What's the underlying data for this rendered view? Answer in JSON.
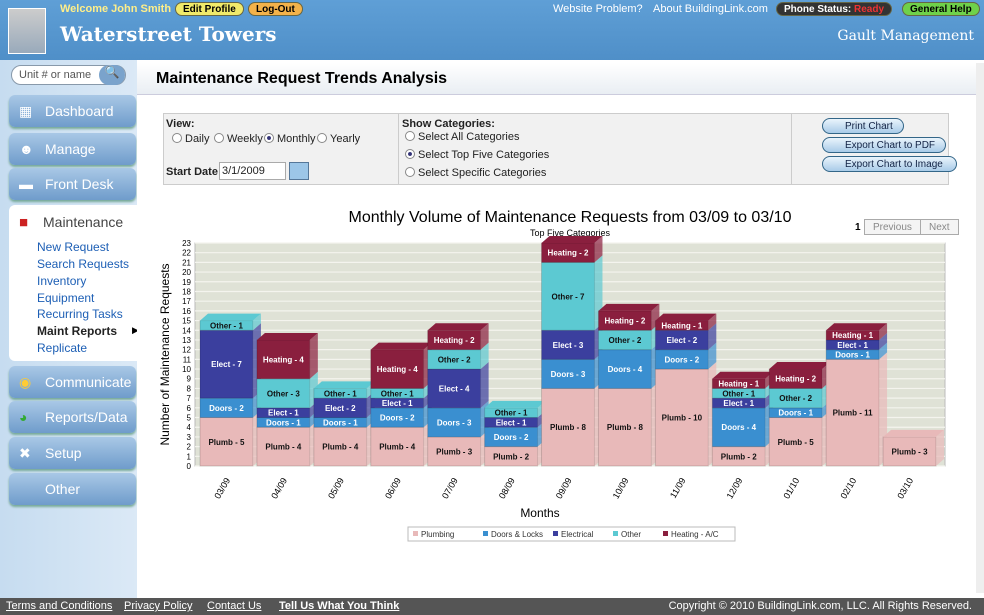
{
  "header": {
    "welcome": "Welcome John Smith",
    "edit_profile": "Edit Profile",
    "logout": "Log-Out",
    "website_problem": "Website Problem?",
    "about": "About BuildingLink.com",
    "phone_status_label": "Phone Status:",
    "phone_status_value": "Ready",
    "general_help": "General Help",
    "site_name": "Waterstreet Towers",
    "management": "Gault Management"
  },
  "sidebar": {
    "search_placeholder": "Unit # or name",
    "items": [
      "Dashboard",
      "Manage",
      "Front Desk",
      "Communicate",
      "Reports/Data",
      "Setup",
      "Other"
    ],
    "section": "Maintenance",
    "subitems": [
      "New Request",
      "Search Requests",
      "Inventory",
      "Equipment",
      "Recurring Tasks",
      "Maint Reports",
      "Replicate"
    ]
  },
  "page": {
    "title": "Maintenance Request Trends Analysis"
  },
  "controls": {
    "view_label": "View:",
    "views": [
      "Daily",
      "Weekly",
      "Monthly",
      "Yearly"
    ],
    "selected_view": "Monthly",
    "start_date_label": "Start Date",
    "start_date": "3/1/2009",
    "categories_label": "Show Categories:",
    "category_options": [
      "Select All Categories",
      "Select Top Five Categories",
      "Select Specific Categories"
    ],
    "selected_category": "Select Top Five Categories",
    "print": "Print Chart",
    "export_pdf": "Export Chart to PDF",
    "export_image": "Export Chart to Image"
  },
  "pager": {
    "page": "1",
    "previous": "Previous",
    "next": "Next"
  },
  "chart_data": {
    "type": "bar",
    "stacked": true,
    "title": "Monthly Volume of Maintenance Requests from 03/09 to 03/10",
    "subtitle": "Top Five Categories",
    "xlabel": "Months",
    "ylabel": "Number of Maintenance Requests",
    "ylim": [
      0,
      23
    ],
    "categories": [
      "03/09",
      "04/09",
      "05/09",
      "06/09",
      "07/09",
      "08/09",
      "09/09",
      "10/09",
      "11/09",
      "12/09",
      "01/10",
      "02/10",
      "03/10"
    ],
    "series": [
      {
        "name": "Plumbing",
        "short": "Plumb",
        "color": "#e8b9b9",
        "values": [
          5,
          4,
          4,
          4,
          3,
          2,
          8,
          8,
          10,
          2,
          5,
          11,
          3
        ]
      },
      {
        "name": "Doors & Locks",
        "short": "Doors",
        "color": "#3a8fd0",
        "values": [
          2,
          1,
          1,
          2,
          3,
          2,
          3,
          4,
          2,
          4,
          1,
          1,
          0
        ]
      },
      {
        "name": "Electrical",
        "short": "Elect",
        "color": "#3b3f9e",
        "values": [
          7,
          1,
          2,
          1,
          4,
          1,
          3,
          0,
          2,
          1,
          0,
          1,
          0
        ]
      },
      {
        "name": "Other",
        "short": "Other",
        "color": "#5cc9d2",
        "values": [
          1,
          3,
          1,
          1,
          2,
          1,
          7,
          2,
          0,
          1,
          2,
          0,
          0
        ]
      },
      {
        "name": "Heating - A/C",
        "short": "Heating",
        "color": "#8a1f3e",
        "values": [
          0,
          4,
          0,
          4,
          2,
          0,
          2,
          2,
          1,
          1,
          2,
          1,
          0
        ]
      }
    ]
  },
  "footer": {
    "links": [
      "Terms and Conditions",
      "Privacy Policy",
      "Contact Us",
      "Tell Us What You Think"
    ],
    "copyright": "Copyright © 2010 BuildingLink.com, LLC. All Rights Reserved."
  }
}
